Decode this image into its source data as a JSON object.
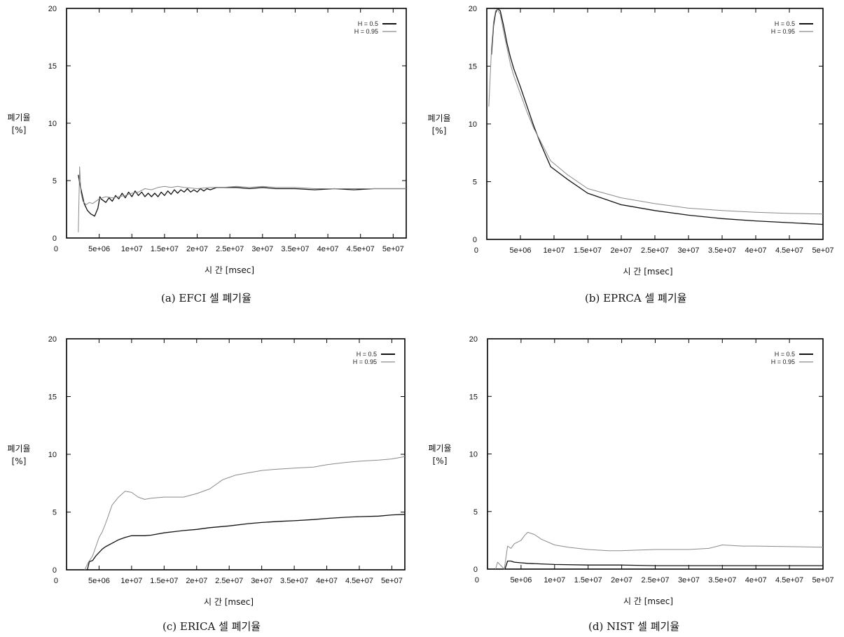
{
  "chart_data": [
    {
      "type": "line",
      "caption": "(a) EFCI 셀 폐기율",
      "xlabel": "시 간 [msec]",
      "ylabel": [
        "폐기율",
        "[%]"
      ],
      "xlim": [
        0,
        52000000
      ],
      "ylim": [
        0,
        20
      ],
      "xticks": [
        0,
        5000000,
        10000000,
        15000000,
        20000000,
        25000000,
        30000000,
        35000000,
        40000000,
        45000000,
        50000000
      ],
      "xtick_labels": [
        "0",
        "5e+06",
        "1e+07",
        "1.5e+07",
        "2e+07",
        "2.5e+07",
        "3e+07",
        "3.5e+07",
        "4e+07",
        "4.5e+07",
        "5e+07"
      ],
      "yticks": [
        0,
        5,
        10,
        15,
        20
      ],
      "ytick_labels": [
        "0",
        "5",
        "10",
        "15",
        "20"
      ],
      "legend_position": "top-right",
      "series": [
        {
          "name": "H = 0.5",
          "color": "#111111",
          "width": 1.3,
          "x": [
            1800000,
            2000000,
            2300000,
            2700000,
            3200000,
            3700000,
            4300000,
            4800000,
            5100000,
            5300000,
            6000000,
            6500000,
            7000000,
            7500000,
            8000000,
            8500000,
            9000000,
            9500000,
            10000000,
            10500000,
            11000000,
            11500000,
            12000000,
            12500000,
            13000000,
            13500000,
            14000000,
            14500000,
            15000000,
            15500000,
            16000000,
            16500000,
            17000000,
            17500000,
            18000000,
            18500000,
            19000000,
            19500000,
            20000000,
            20500000,
            21000000,
            21500000,
            22000000,
            23000000,
            24000000,
            26000000,
            28000000,
            30000000,
            32000000,
            35000000,
            38000000,
            41000000,
            44000000,
            47000000,
            50000000,
            52000000
          ],
          "y": [
            5.5,
            4.8,
            4.0,
            3.0,
            2.4,
            2.1,
            1.9,
            2.6,
            3.6,
            3.4,
            3.1,
            3.5,
            3.2,
            3.7,
            3.4,
            3.9,
            3.5,
            4.0,
            3.6,
            4.1,
            3.7,
            4.0,
            3.6,
            3.9,
            3.6,
            3.9,
            3.6,
            4.0,
            3.7,
            4.1,
            3.8,
            4.2,
            3.9,
            4.2,
            4.0,
            4.3,
            4.0,
            4.2,
            4.0,
            4.3,
            4.1,
            4.3,
            4.2,
            4.4,
            4.4,
            4.4,
            4.3,
            4.4,
            4.3,
            4.3,
            4.2,
            4.3,
            4.2,
            4.3,
            4.3,
            4.3
          ]
        },
        {
          "name": "H = 0.95",
          "color": "#8a8a8a",
          "width": 1.0,
          "x": [
            1800000,
            2000000,
            2200000,
            2500000,
            3000000,
            3500000,
            4000000,
            5000000,
            6000000,
            7000000,
            8000000,
            9000000,
            10000000,
            11000000,
            12000000,
            13000000,
            14000000,
            15000000,
            16000000,
            17000000,
            18000000,
            20000000,
            22000000,
            24000000,
            26000000,
            28000000,
            30000000,
            32000000,
            35000000,
            38000000,
            41000000,
            44000000,
            47000000,
            50000000,
            52000000
          ],
          "y": [
            0.5,
            6.2,
            4.0,
            3.2,
            2.9,
            3.1,
            3.0,
            3.4,
            3.6,
            3.5,
            3.6,
            3.7,
            3.9,
            4.0,
            4.3,
            4.2,
            4.4,
            4.5,
            4.4,
            4.5,
            4.4,
            4.3,
            4.4,
            4.4,
            4.5,
            4.4,
            4.5,
            4.4,
            4.4,
            4.3,
            4.3,
            4.3,
            4.3,
            4.3,
            4.3
          ]
        }
      ]
    },
    {
      "type": "line",
      "caption": "(b) EPRCA 셀 폐기율",
      "xlabel": "시 간 [msec]",
      "ylabel": [
        "폐기율",
        "[%]"
      ],
      "xlim": [
        0,
        50000000
      ],
      "ylim": [
        0,
        20
      ],
      "xticks": [
        0,
        5000000,
        10000000,
        15000000,
        20000000,
        25000000,
        30000000,
        35000000,
        40000000,
        45000000,
        50000000
      ],
      "xtick_labels": [
        "0",
        "5e+06",
        "1e+07",
        "1.5e+07",
        "2e+07",
        "2.5e+07",
        "3e+07",
        "3.5e+07",
        "4e+07",
        "4.5e+07",
        "5e+07"
      ],
      "yticks": [
        0,
        5,
        10,
        15,
        20
      ],
      "ytick_labels": [
        "0",
        "5",
        "10",
        "15",
        "20"
      ],
      "legend_position": "top-right",
      "series": [
        {
          "name": "H = 0.5",
          "color": "#111111",
          "width": 1.3,
          "x": [
            700000,
            1000000,
            1300000,
            1600000,
            2000000,
            2500000,
            3000000,
            3500000,
            4000000,
            5000000,
            6000000,
            7000000,
            8000000,
            9500000,
            12000000,
            15000000,
            20000000,
            25000000,
            30000000,
            35000000,
            40000000,
            45000000,
            50000000
          ],
          "y": [
            16.0,
            18.5,
            19.6,
            20.0,
            19.8,
            18.5,
            17.0,
            15.8,
            14.8,
            13.2,
            11.5,
            9.8,
            8.3,
            6.3,
            5.2,
            4.0,
            3.0,
            2.5,
            2.1,
            1.8,
            1.6,
            1.45,
            1.3
          ]
        },
        {
          "name": "H = 0.95",
          "color": "#8a8a8a",
          "width": 1.0,
          "x": [
            300000,
            700000,
            1000000,
            1300000,
            1600000,
            2000000,
            2500000,
            3000000,
            3500000,
            4000000,
            5000000,
            6000000,
            7000000,
            8000000,
            9500000,
            12000000,
            15000000,
            20000000,
            25000000,
            30000000,
            35000000,
            40000000,
            45000000,
            50000000
          ],
          "y": [
            11.5,
            16.5,
            18.8,
            19.8,
            19.9,
            19.5,
            18.0,
            16.6,
            15.2,
            14.2,
            12.6,
            11.0,
            9.6,
            8.5,
            6.8,
            5.6,
            4.4,
            3.6,
            3.1,
            2.7,
            2.5,
            2.35,
            2.25,
            2.2
          ]
        }
      ]
    },
    {
      "type": "line",
      "caption": "(c) ERICA 셀 폐기율",
      "xlabel": "시 간 [msec]",
      "ylabel": [
        "폐기율",
        "[%]"
      ],
      "xlim": [
        0,
        52000000
      ],
      "ylim": [
        0,
        20
      ],
      "xticks": [
        0,
        5000000,
        10000000,
        15000000,
        20000000,
        25000000,
        30000000,
        35000000,
        40000000,
        45000000,
        50000000
      ],
      "xtick_labels": [
        "0",
        "5e+06",
        "1e+07",
        "1.5e+07",
        "2e+07",
        "2.5e+07",
        "3e+07",
        "3.5e+07",
        "4e+07",
        "4.5e+07",
        "5e+07"
      ],
      "yticks": [
        0,
        5,
        10,
        15,
        20
      ],
      "ytick_labels": [
        "0",
        "5",
        "10",
        "15",
        "20"
      ],
      "legend_position": "top-right",
      "series": [
        {
          "name": "H = 0.5",
          "color": "#111111",
          "width": 1.3,
          "x": [
            3200000,
            3500000,
            4000000,
            4500000,
            5000000,
            5500000,
            6000000,
            7000000,
            8000000,
            9000000,
            10000000,
            11000000,
            12000000,
            13000000,
            15000000,
            18000000,
            20000000,
            22000000,
            25000000,
            28000000,
            30000000,
            33000000,
            35000000,
            38000000,
            40000000,
            43000000,
            45000000,
            48000000,
            50000000,
            52000000
          ],
          "y": [
            0.0,
            0.7,
            0.8,
            1.2,
            1.5,
            1.8,
            2.0,
            2.3,
            2.6,
            2.8,
            2.95,
            2.95,
            2.95,
            3.0,
            3.2,
            3.4,
            3.5,
            3.65,
            3.8,
            4.0,
            4.1,
            4.2,
            4.25,
            4.35,
            4.45,
            4.55,
            4.6,
            4.65,
            4.75,
            4.8
          ]
        },
        {
          "name": "H = 0.95",
          "color": "#8a8a8a",
          "width": 1.0,
          "x": [
            2800000,
            3300000,
            4000000,
            4500000,
            5000000,
            5500000,
            6000000,
            6500000,
            7000000,
            8000000,
            9000000,
            10000000,
            11000000,
            12000000,
            13000000,
            15000000,
            18000000,
            20000000,
            22000000,
            24000000,
            25000000,
            26000000,
            28000000,
            30000000,
            32000000,
            35000000,
            38000000,
            40000000,
            43000000,
            45000000,
            48000000,
            50000000,
            52000000
          ],
          "y": [
            0.0,
            0.6,
            1.2,
            2.0,
            2.8,
            3.3,
            4.0,
            4.8,
            5.6,
            6.3,
            6.8,
            6.7,
            6.3,
            6.1,
            6.2,
            6.3,
            6.3,
            6.6,
            7.0,
            7.8,
            8.0,
            8.2,
            8.4,
            8.6,
            8.7,
            8.8,
            8.9,
            9.1,
            9.3,
            9.4,
            9.5,
            9.6,
            9.8
          ]
        }
      ]
    },
    {
      "type": "line",
      "caption": "(d) NIST 셀 폐기율",
      "xlabel": "시 간 [msec]",
      "ylabel": [
        "폐기율",
        "[%]"
      ],
      "xlim": [
        0,
        50000000
      ],
      "ylim": [
        0,
        20
      ],
      "xticks": [
        0,
        5000000,
        10000000,
        15000000,
        20000000,
        25000000,
        30000000,
        35000000,
        40000000,
        45000000,
        50000000
      ],
      "xtick_labels": [
        "0",
        "5e+06",
        "1e+07",
        "1.5e+07",
        "2e+07",
        "2.5e+07",
        "3e+07",
        "3.5e+07",
        "4e+07",
        "4.5e+07",
        "5e+07"
      ],
      "yticks": [
        0,
        5,
        10,
        15,
        20
      ],
      "ytick_labels": [
        "0",
        "5",
        "10",
        "15",
        "20"
      ],
      "legend_position": "top-right",
      "series": [
        {
          "name": "H = 0.5",
          "color": "#111111",
          "width": 1.3,
          "x": [
            2600000,
            3000000,
            3500000,
            4000000,
            5000000,
            6000000,
            8000000,
            10000000,
            15000000,
            20000000,
            25000000,
            30000000,
            35000000,
            40000000,
            45000000,
            50000000
          ],
          "y": [
            0.0,
            0.7,
            0.7,
            0.6,
            0.55,
            0.5,
            0.45,
            0.4,
            0.35,
            0.35,
            0.3,
            0.3,
            0.3,
            0.3,
            0.3,
            0.3
          ]
        },
        {
          "name": "H = 0.95",
          "color": "#8a8a8a",
          "width": 1.0,
          "x": [
            1200000,
            1500000,
            2500000,
            3000000,
            3500000,
            4000000,
            5000000,
            5500000,
            6000000,
            7000000,
            8000000,
            10000000,
            12000000,
            15000000,
            18000000,
            20000000,
            25000000,
            30000000,
            33000000,
            35000000,
            38000000,
            40000000,
            45000000,
            50000000
          ],
          "y": [
            0.0,
            0.6,
            0.0,
            2.0,
            1.8,
            2.2,
            2.5,
            2.9,
            3.2,
            3.0,
            2.6,
            2.1,
            1.9,
            1.7,
            1.6,
            1.6,
            1.7,
            1.7,
            1.8,
            2.1,
            2.0,
            2.0,
            1.95,
            1.9
          ]
        }
      ]
    }
  ]
}
